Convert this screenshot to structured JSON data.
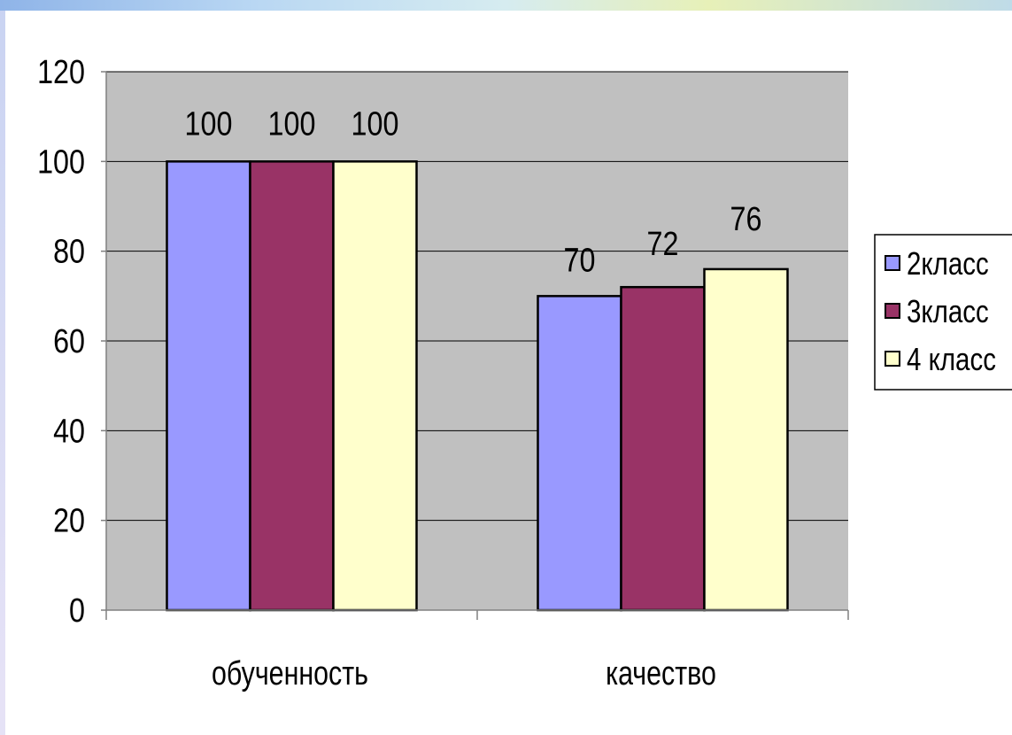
{
  "chart_data": {
    "type": "bar",
    "categories": [
      "обученность",
      "качество"
    ],
    "series": [
      {
        "name": "2класс",
        "values": [
          100,
          70
        ],
        "color": "#9999ff"
      },
      {
        "name": "3класс",
        "values": [
          100,
          72
        ],
        "color": "#993366"
      },
      {
        "name": "4 класс",
        "values": [
          100,
          76
        ],
        "color": "#ffffcc"
      }
    ],
    "y_ticks": [
      "0",
      "20",
      "40",
      "60",
      "80",
      "100",
      "120"
    ],
    "ylim": [
      0,
      120
    ],
    "grid": true,
    "legend_position": "right",
    "plot_background": "#c0c0c0"
  }
}
